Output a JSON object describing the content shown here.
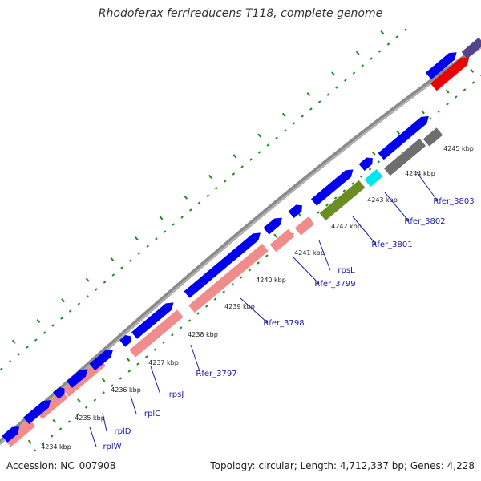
{
  "title": "Rhodoferax ferrireducens T118, complete genome",
  "accession": "Accession: NC_007908",
  "summary": "Topology: circular; Length: 4,712,337 bp; Genes: 4,228",
  "colors": {
    "forward_cds": "#0000ee",
    "rrna_pink": "#f08c8c",
    "red_cds": "#ee0000",
    "olive_cds": "#6b8e23",
    "cyan_cds": "#00e5ee",
    "gray_cds": "#6e6e6e",
    "purple_cds": "#55448c",
    "backbone": "#8a8a8a",
    "tick_green": "#1e8c1e",
    "label_blue": "#1a1aa6"
  },
  "kbp_ticks": [
    "4234 kbp",
    "4235 kbp",
    "4236 kbp",
    "4237 kbp",
    "4238 kbp",
    "4239 kbp",
    "4240 kbp",
    "4241 kbp",
    "4242 kbp",
    "4243 kbp",
    "4244 kbp",
    "4245 kbp"
  ],
  "gene_labels": [
    "rplW",
    "rplD",
    "rplC",
    "rpsJ",
    "Rfer_3797",
    "Rfer_3798",
    "Rfer_3799",
    "rpsL",
    "Rfer_3801",
    "Rfer_3802",
    "Rfer_3803"
  ]
}
